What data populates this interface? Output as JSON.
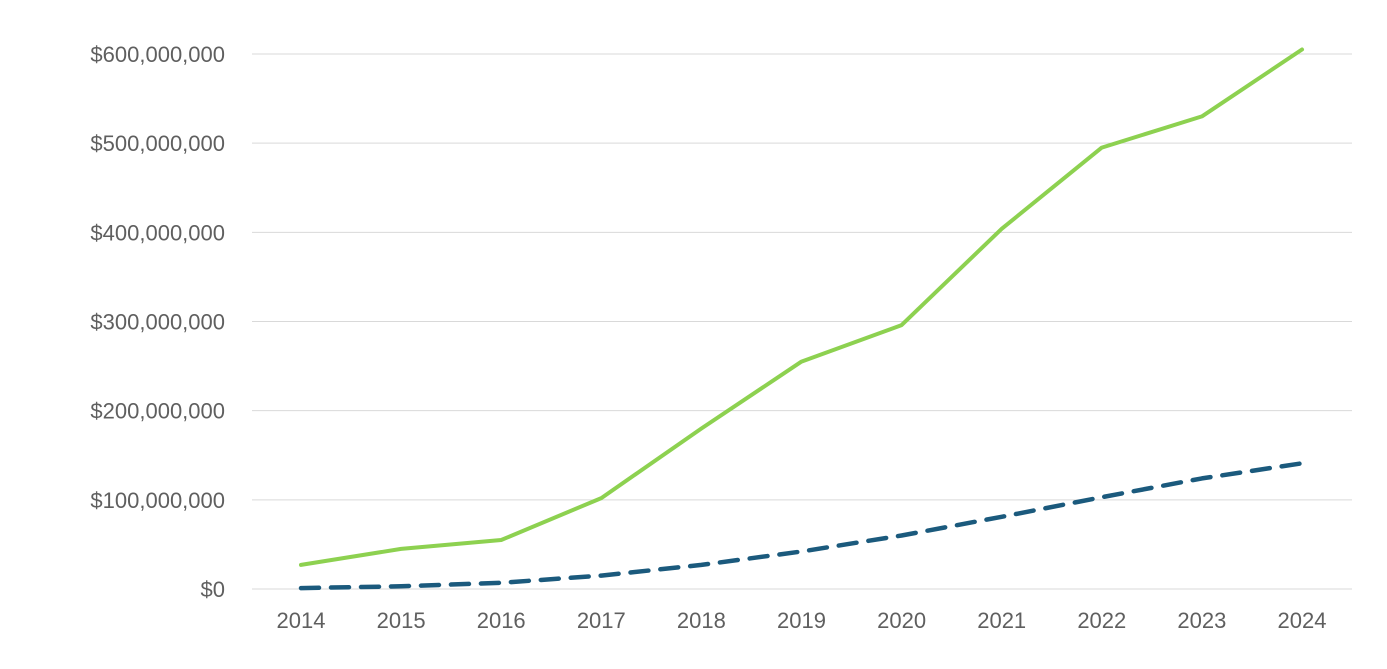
{
  "chart_data": {
    "type": "line",
    "title": "",
    "xlabel": "",
    "ylabel": "",
    "x": [
      "2014",
      "2015",
      "2016",
      "2017",
      "2018",
      "2019",
      "2020",
      "2021",
      "2022",
      "2023",
      "2024"
    ],
    "ylim": [
      0,
      600000000
    ],
    "yticks": [
      {
        "value": 0,
        "label": "$0"
      },
      {
        "value": 100000000,
        "label": "$100,000,000"
      },
      {
        "value": 200000000,
        "label": "$200,000,000"
      },
      {
        "value": 300000000,
        "label": "$300,000,000"
      },
      {
        "value": 400000000,
        "label": "$400,000,000"
      },
      {
        "value": 500000000,
        "label": "$500,000,000"
      },
      {
        "value": 600000000,
        "label": "$600,000,000"
      }
    ],
    "grid": "horizontal",
    "legend": "none",
    "series": [
      {
        "color": "#8dd150",
        "style": "solid",
        "values": [
          27000000,
          45000000,
          55000000,
          102000000,
          180000000,
          255000000,
          296000000,
          404000000,
          495000000,
          530000000,
          605000000
        ]
      },
      {
        "color": "#1b5a7d",
        "style": "dashed",
        "values": [
          1000000,
          3000000,
          7000000,
          15000000,
          27000000,
          42000000,
          60000000,
          81000000,
          103000000,
          124000000,
          141000000
        ]
      }
    ]
  }
}
